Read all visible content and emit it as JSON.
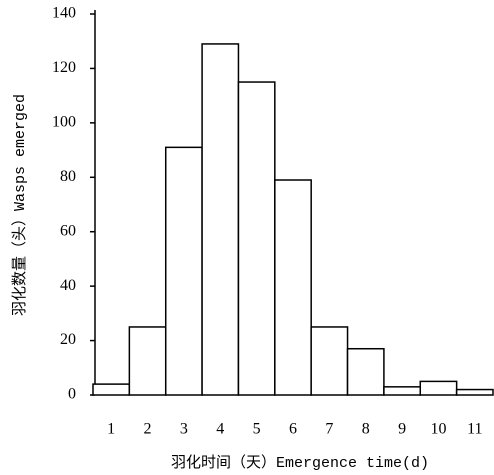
{
  "chart_data": {
    "type": "bar",
    "x_label": "羽化时间（天）Emergence time(d)",
    "y_label": "羽化数量（头）Wasps emerged",
    "categories": [
      "1",
      "2",
      "3",
      "4",
      "5",
      "6",
      "7",
      "8",
      "9",
      "10",
      "11"
    ],
    "values": [
      4,
      25,
      91,
      129,
      115,
      79,
      25,
      17,
      3,
      5,
      2
    ],
    "color": "#ffffff",
    "ylim": [
      0,
      140
    ],
    "yticks": [
      0,
      20,
      40,
      60,
      80,
      100,
      120,
      140
    ],
    "grid": false
  }
}
